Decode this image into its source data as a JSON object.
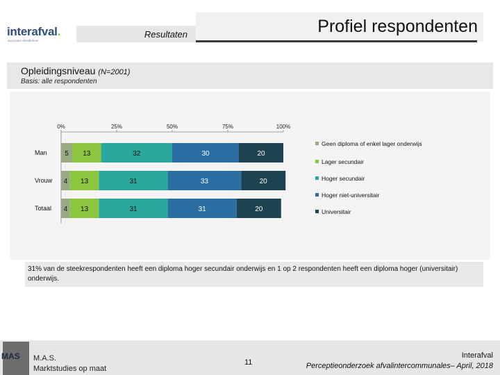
{
  "header": {
    "logo_text": "interafval",
    "logo_tagline": "duurzaam afvalbeheer",
    "section_label": "Resultaten",
    "title": "Profiel respondenten"
  },
  "subtitle": {
    "heading": "Opleidingsniveau",
    "n_label": "(N=2001)",
    "basis": "Basis: alle respondenten"
  },
  "colors": {
    "geen_diploma": "#9aa985",
    "lager_secundair": "#8cc63f",
    "hoger_secundair": "#2aa89e",
    "hoger_niet_universitair": "#2c6ea1",
    "universitair": "#1d4350"
  },
  "chart_data": {
    "type": "bar",
    "orientation": "horizontal",
    "stacked": "percent",
    "categories": [
      "Man",
      "Vrouw",
      "Totaal"
    ],
    "x_ticks": [
      "0%",
      "25%",
      "50%",
      "75%",
      "100%"
    ],
    "xlim": [
      0,
      100
    ],
    "legend_position": "right",
    "series": [
      {
        "name": "Geen diploma of enkel lager onderwijs",
        "values": [
          5,
          4,
          4
        ],
        "color": "#9aa985"
      },
      {
        "name": "Lager secundair",
        "values": [
          13,
          13,
          13
        ],
        "color": "#8cc63f"
      },
      {
        "name": "Hoger secundair",
        "values": [
          32,
          31,
          31
        ],
        "color": "#2aa89e"
      },
      {
        "name": "Hoger niet-universitair",
        "values": [
          30,
          33,
          31
        ],
        "color": "#2c6ea1"
      },
      {
        "name": "Universitair",
        "values": [
          20,
          20,
          20
        ],
        "color": "#1d4350"
      }
    ]
  },
  "note": "31% van de steekrespondenten heeft een diploma hoger secundair onderwijs en 1 op 2 respondenten heeft een diploma hoger (universitair) onderwijs.",
  "footer": {
    "logo_text": "MAS",
    "company_name": "M.A.S.",
    "company_tagline": "Marktstudies op maat",
    "page_number": "11",
    "org": "Interafval",
    "study": "Perceptieonderzoek afvalintercommunales– April, 2018"
  }
}
